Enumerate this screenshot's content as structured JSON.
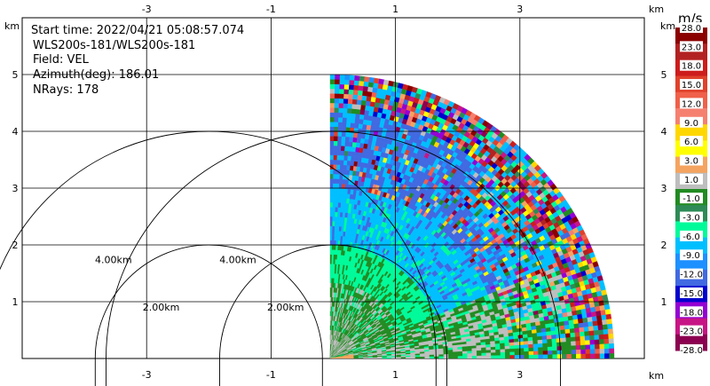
{
  "chart_data": {
    "type": "heatmap",
    "info": {
      "start_time": "Start time: 2022/04/21 05:08:57.074",
      "station": "WLS200s-181/WLS200s-181",
      "field": "Field: VEL",
      "azimuth": "Azimuth(deg): 186.01",
      "nrays": "NRays: 178"
    },
    "axes": {
      "xlim": [
        -5,
        5
      ],
      "ylim": [
        0,
        5
      ],
      "x_unit": "km",
      "y_unit": "km",
      "x_ticks": [
        {
          "value": -3,
          "label": "-3"
        },
        {
          "value": -1,
          "label": "-1"
        },
        {
          "value": 1,
          "label": "1"
        },
        {
          "value": 3,
          "label": "3"
        }
      ],
      "y_ticks": [
        {
          "value": 1,
          "label": "1"
        },
        {
          "value": 2,
          "label": "2"
        },
        {
          "value": 3,
          "label": "3"
        },
        {
          "value": 4,
          "label": "4"
        },
        {
          "value": 5,
          "label": "5"
        }
      ],
      "grid": true
    },
    "range_rings": [
      {
        "center_x": 0,
        "radius_km": 2,
        "label": "2.00km"
      },
      {
        "center_x": 0,
        "radius_km": 4,
        "label": "4.00km"
      },
      {
        "center_x": -2.0,
        "radius_km": 2,
        "label": "2.00km"
      },
      {
        "center_x": -2.0,
        "radius_km": 4,
        "label": "4.00km"
      }
    ],
    "sector": {
      "origin_x": -0.05,
      "origin_y": 0.0,
      "max_range_km": 5.0,
      "azimuth_range_deg": [
        0,
        90
      ]
    },
    "colorbar": {
      "unit": "m/s",
      "labels": [
        "28.0",
        "23.0",
        "18.0",
        "15.0",
        "12.0",
        "9.0",
        "6.0",
        "3.0",
        "1.0",
        "-1.0",
        "-3.0",
        "-6.0",
        "-9.0",
        "-12.0",
        "-15.0",
        "-18.0",
        "-23.0",
        "-28.0"
      ],
      "colors": [
        "#8b0000",
        "#b22222",
        "#cd1c1c",
        "#e0412b",
        "#f0604a",
        "#f58070",
        "#ffd700",
        "#ffff00",
        "#f4a460",
        "#bebebe",
        "#228b22",
        "#2e8b57",
        "#00fa9a",
        "#00bfff",
        "#1e90ff",
        "#4169e1",
        "#0000cd",
        "#9400d3",
        "#c71585",
        "#8b0050"
      ]
    },
    "colors": {
      "ground": "#bebebe",
      "green": "#228b22",
      "aqua": "#00fa9a",
      "sky": "#00bfff",
      "blue": "#4169e1",
      "orange": "#f4a460"
    }
  }
}
